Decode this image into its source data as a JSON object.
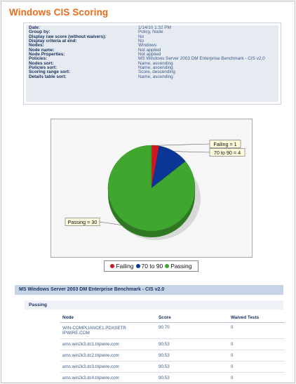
{
  "report": {
    "title": "Windows CIS Scoring"
  },
  "parameters": [
    {
      "label": "Date:",
      "value": "1/14/10 1:32 PM"
    },
    {
      "label": "Group by:",
      "value": "Policy, Node"
    },
    {
      "label": "Display raw score (without waivers):",
      "value": "No"
    },
    {
      "label": "Display criteria at end:",
      "value": "No"
    },
    {
      "label": "Nodes:",
      "value": "Windows"
    },
    {
      "label": "Node name:",
      "value": "Not applied"
    },
    {
      "label": "Node Properties:",
      "value": "Not applied"
    },
    {
      "label": "Policies:",
      "value": "MS Windows Server 2003 DM Enterprise Benchmark - CIS v2.0"
    },
    {
      "label": "Nodes sort:",
      "value": "Name, ascending"
    },
    {
      "label": "Policies sort:",
      "value": "Name, ascending"
    },
    {
      "label": "Scoring range sort:",
      "value": "Score, descending"
    },
    {
      "label": "Details table sort:",
      "value": "Name, ascending"
    }
  ],
  "chart_data": {
    "type": "pie",
    "categories": [
      "Failing",
      "70 to 90",
      "Passing"
    ],
    "values": [
      1,
      4,
      30
    ],
    "callouts": [
      "Failing = 1",
      "70 to 90 = 4",
      "Passing = 30"
    ],
    "colors": [
      "#d0161e",
      "#0b3696",
      "#3fa62e"
    ],
    "legend": [
      "Failing",
      "70 to 90",
      "Passing"
    ],
    "legend_position": "bottom"
  },
  "section": {
    "title": "MS Windows Server 2003 DM Enterprise Benchmark - CIS v2.0",
    "group_label": "Passing"
  },
  "table": {
    "headers": [
      "Node",
      "Score",
      "Waived Tests"
    ],
    "rows": [
      {
        "node_line1": "WIN-COMPLIANCE1.PDXSETR",
        "node_line2": "IPWIRE.COM",
        "score": "90.70",
        "waived": "0"
      },
      {
        "node_line1": "ams.win2k3.dc1.tripwire.com",
        "node_line2": "",
        "score": "90.53",
        "waived": "0"
      },
      {
        "node_line1": "ams.win2k3.dc2.tripwire.com",
        "node_line2": "",
        "score": "90.53",
        "waived": "0"
      },
      {
        "node_line1": "ams.win2k3.dc3.tripwire.com",
        "node_line2": "",
        "score": "90.53",
        "waived": "0"
      },
      {
        "node_line1": "ams.win2k3.dc4.tripwire.com",
        "node_line2": "",
        "score": "90.53",
        "waived": "0"
      }
    ]
  }
}
